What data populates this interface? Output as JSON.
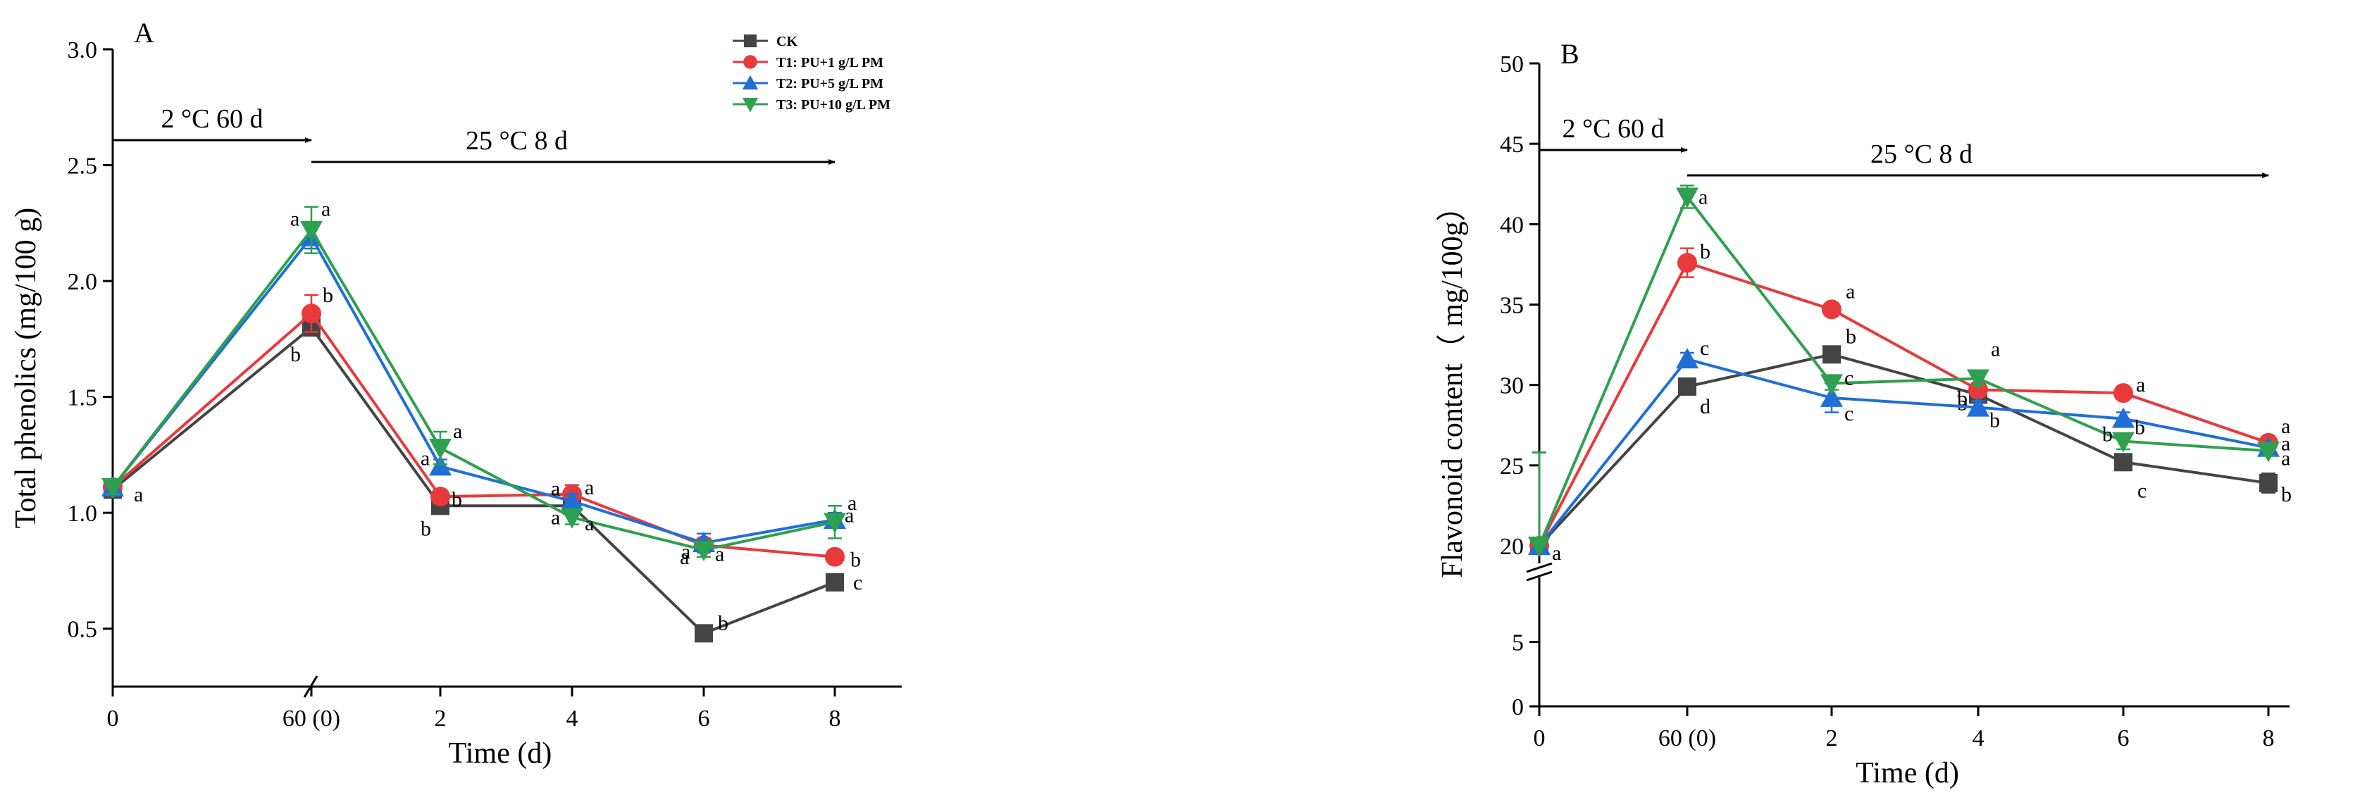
{
  "chart_data": [
    {
      "panel": "A",
      "type": "line",
      "title": "",
      "xlabel": "Time (d)",
      "ylabel": "Total phenolics (mg/100 g)",
      "x_tick_labels": [
        "0",
        "60 (0)",
        "2",
        "4",
        "6",
        "8"
      ],
      "x": [
        0,
        1,
        2,
        3,
        4,
        5
      ],
      "ylim": [
        0.25,
        3.0
      ],
      "y_ticks": [
        "0.5",
        "1.0",
        "1.5",
        "2.0",
        "2.5",
        "3.0"
      ],
      "annotations": [
        {
          "label": "2 °C 60 d",
          "from": 0,
          "to": 1
        },
        {
          "label": "25 °C 8 d",
          "from": 1,
          "to": 5
        }
      ],
      "legend": "top-right",
      "series": [
        {
          "name": "CK",
          "color": "#444444",
          "marker": "square",
          "values": [
            1.1,
            1.8,
            1.03,
            1.03,
            0.48,
            0.7
          ],
          "errors": [
            0.03,
            0.03,
            0.02,
            0.02,
            0.03,
            0.03
          ],
          "letters": [
            "",
            "b",
            "b",
            "a",
            "b",
            "c"
          ]
        },
        {
          "name": "T1: PU+1 g/L PM",
          "color": "#e8393b",
          "marker": "circle",
          "values": [
            1.11,
            1.86,
            1.07,
            1.08,
            0.86,
            0.81
          ],
          "errors": [
            0.03,
            0.08,
            0.03,
            0.04,
            0.03,
            0.02
          ],
          "letters": [
            "a",
            "b",
            "b",
            "a",
            "a",
            "b"
          ]
        },
        {
          "name": "T2: PU+5 g/L PM",
          "color": "#1f6fd6",
          "marker": "triangle-up",
          "values": [
            1.11,
            2.19,
            1.2,
            1.05,
            0.87,
            0.97
          ],
          "errors": [
            0.03,
            0.05,
            0.03,
            0.03,
            0.04,
            0.03
          ],
          "letters": [
            "",
            "a",
            "a",
            "a",
            "a",
            "a"
          ]
        },
        {
          "name": "T3: PU+10 g/L PM",
          "color": "#2ea04f",
          "marker": "triangle-down",
          "values": [
            1.11,
            2.22,
            1.28,
            0.98,
            0.84,
            0.96
          ],
          "errors": [
            0.03,
            0.1,
            0.07,
            0.03,
            0.03,
            0.07
          ],
          "letters": [
            "",
            "a",
            "a",
            "a",
            "a",
            "a"
          ]
        }
      ]
    },
    {
      "panel": "B",
      "type": "line",
      "title": "",
      "xlabel": "Time (d)",
      "ylabel": "Flavonoid content（ mg/100g）",
      "x_tick_labels": [
        "0",
        "60 (0)",
        "2",
        "4",
        "6",
        "8"
      ],
      "x": [
        0,
        1,
        2,
        3,
        4,
        5
      ],
      "ylim": [
        0,
        50
      ],
      "axis_break": [
        10,
        18
      ],
      "y_ticks": [
        "0",
        "5",
        "20",
        "25",
        "30",
        "35",
        "40",
        "45",
        "50"
      ],
      "annotations": [
        {
          "label": "2 °C 60 d",
          "from": 0,
          "to": 1
        },
        {
          "label": "25 °C 8 d",
          "from": 1,
          "to": 5
        }
      ],
      "series": [
        {
          "name": "CK",
          "color": "#444444",
          "marker": "square",
          "values": [
            20.0,
            29.9,
            31.9,
            29.4,
            25.2,
            23.9
          ],
          "errors": [
            0.3,
            0.3,
            0.4,
            0.4,
            0.4,
            0.6
          ],
          "letters": [
            "",
            "d",
            "b",
            "b",
            "c",
            "b"
          ]
        },
        {
          "name": "T1: PU+1 g/L PM",
          "color": "#e8393b",
          "marker": "circle",
          "values": [
            20.0,
            37.6,
            34.7,
            29.7,
            29.5,
            26.4
          ],
          "errors": [
            0.3,
            0.9,
            0.4,
            0.4,
            0.3,
            0.3
          ],
          "letters": [
            "",
            "b",
            "a",
            "b",
            "a",
            "a"
          ]
        },
        {
          "name": "T2: PU+5 g/L PM",
          "color": "#1f6fd6",
          "marker": "triangle-up",
          "values": [
            20.0,
            31.6,
            29.2,
            28.6,
            27.9,
            26.1
          ],
          "errors": [
            0.3,
            0.4,
            0.9,
            0.4,
            0.4,
            0.3
          ],
          "letters": [
            "a",
            "c",
            "c",
            "b",
            "b",
            "a"
          ]
        },
        {
          "name": "T3: PU+10 g/L PM",
          "color": "#2ea04f",
          "marker": "triangle-down",
          "values": [
            20.0,
            41.7,
            30.1,
            30.4,
            26.5,
            25.9
          ],
          "errors": [
            0.3,
            0.7,
            0.4,
            0.4,
            0.5,
            0.3
          ],
          "letters": [
            "",
            "a",
            "c",
            "a",
            "b",
            "a"
          ]
        }
      ]
    }
  ]
}
